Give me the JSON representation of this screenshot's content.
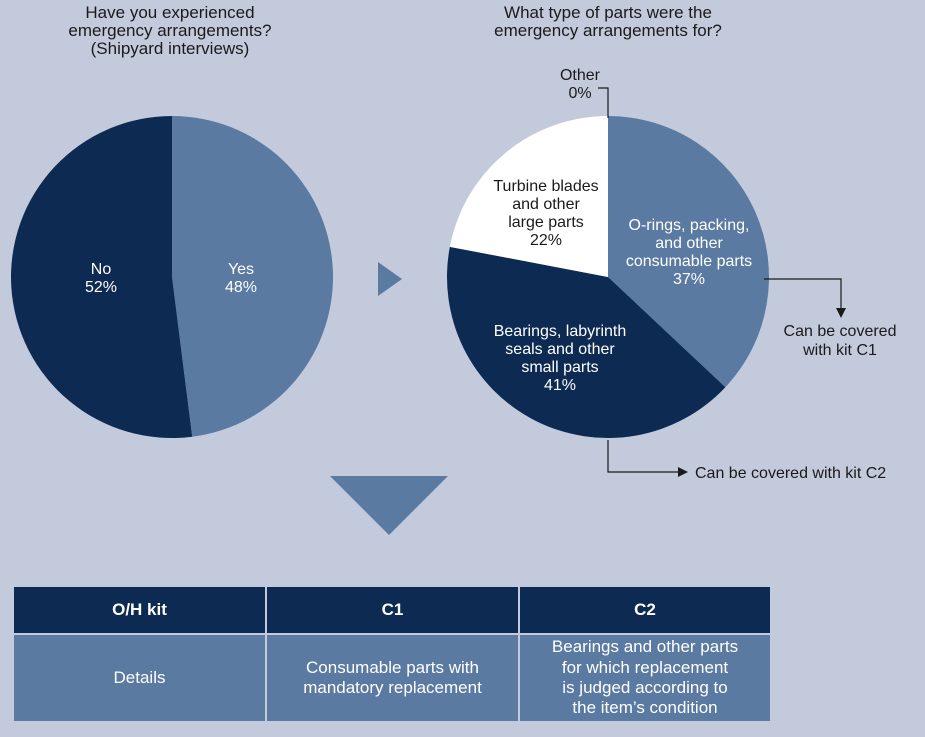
{
  "colors": {
    "background": "#c3cadc",
    "dark_navy": "#0d2a52",
    "steel_blue": "#5a7aa2",
    "white": "#ffffff"
  },
  "chart_data": [
    {
      "type": "pie",
      "title_lines": [
        "Have you experienced",
        "emergency arrangements?",
        "(Shipyard interviews)"
      ],
      "slices": [
        {
          "label": "Yes",
          "value": 48,
          "value_text": "48%",
          "color": "#5a7aa2"
        },
        {
          "label": "No",
          "value": 52,
          "value_text": "52%",
          "color": "#0d2a52"
        }
      ]
    },
    {
      "type": "pie",
      "title_lines": [
        "What type of parts were the",
        "emergency arrangements for?"
      ],
      "slices": [
        {
          "label_lines": [
            "O-rings, packing,",
            "and other",
            "consumable parts"
          ],
          "value": 37,
          "value_text": "37%",
          "color": "#5a7aa2"
        },
        {
          "label_lines": [
            "Bearings, labyrinth",
            "seals and other",
            "small parts"
          ],
          "value": 41,
          "value_text": "41%",
          "color": "#0d2a52"
        },
        {
          "label_lines": [
            "Turbine blades",
            "and other",
            "large parts"
          ],
          "value": 22,
          "value_text": "22%",
          "color": "#ffffff"
        },
        {
          "label_lines": [
            "Other"
          ],
          "value": 0,
          "value_text": "0%",
          "color": "#ffffff"
        }
      ],
      "annotations": {
        "c1_lines": [
          "Can be covered",
          "with kit C1"
        ],
        "c2": "Can be covered with kit C2"
      }
    }
  ],
  "table": {
    "headers": [
      "O/H kit",
      "C1",
      "C2"
    ],
    "row": [
      [
        "Details"
      ],
      [
        "Consumable parts with",
        "mandatory replacement"
      ],
      [
        "Bearings and other parts",
        "for which replacement",
        "is judged according to",
        "the item’s condition"
      ]
    ]
  }
}
